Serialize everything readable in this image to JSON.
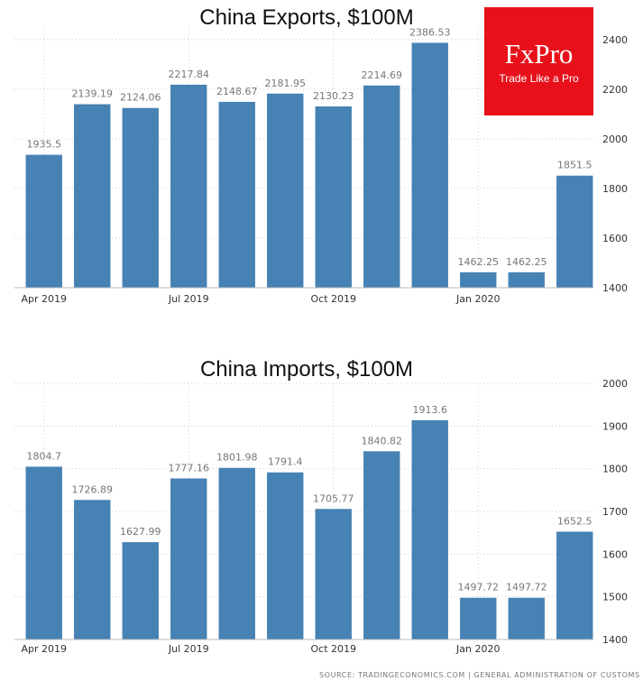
{
  "brand": {
    "name": "FxPro",
    "tagline": "Trade Like a Pro",
    "color": "#e8101a"
  },
  "source": "SOURCE: TRADINGECONOMICS.COM | GENERAL ADMINISTRATION OF CUSTOMS",
  "colors": {
    "bar": "#4682b4",
    "grid": "#d0d0d0",
    "label": "#777777",
    "axis_text": "#333333"
  },
  "chart_data": [
    {
      "type": "bar",
      "title": "China Exports, $100M",
      "x_tick_labels": [
        "Apr 2019",
        "Jul 2019",
        "Oct 2019",
        "Jan 2020"
      ],
      "x_tick_at_index": [
        0,
        3,
        6,
        9
      ],
      "values": [
        1935.5,
        2139.19,
        2124.06,
        2217.84,
        2148.67,
        2181.95,
        2130.23,
        2214.69,
        2386.53,
        1462.25,
        1462.25,
        1851.5
      ],
      "data_labels": [
        "1935.5",
        "2139.19",
        "2124.06",
        "2217.84",
        "2148.67",
        "2181.95",
        "2130.23",
        "2214.69",
        "2386.53",
        "1462.25",
        "1462.25",
        "1851.5"
      ],
      "y_ticks": [
        1400,
        1600,
        1800,
        2000,
        2200,
        2400
      ],
      "ylim": [
        1400,
        2450
      ],
      "y_axis_side": "right",
      "grid": true,
      "legend": "none"
    },
    {
      "type": "bar",
      "title": "China Imports, $100M",
      "x_tick_labels": [
        "Apr 2019",
        "Jul 2019",
        "Oct 2019",
        "Jan 2020"
      ],
      "x_tick_at_index": [
        0,
        3,
        6,
        9
      ],
      "values": [
        1804.7,
        1726.89,
        1627.99,
        1777.16,
        1801.98,
        1791.4,
        1705.77,
        1840.82,
        1913.6,
        1497.72,
        1497.72,
        1652.5
      ],
      "data_labels": [
        "1804.7",
        "1726.89",
        "1627.99",
        "1777.16",
        "1801.98",
        "1791.4",
        "1705.77",
        "1840.82",
        "1913.6",
        "1497.72",
        "1497.72",
        "1652.5"
      ],
      "y_ticks": [
        1400,
        1500,
        1600,
        1700,
        1800,
        1900,
        2000
      ],
      "ylim": [
        1400,
        2000
      ],
      "y_axis_side": "right",
      "grid": true,
      "legend": "none"
    }
  ]
}
